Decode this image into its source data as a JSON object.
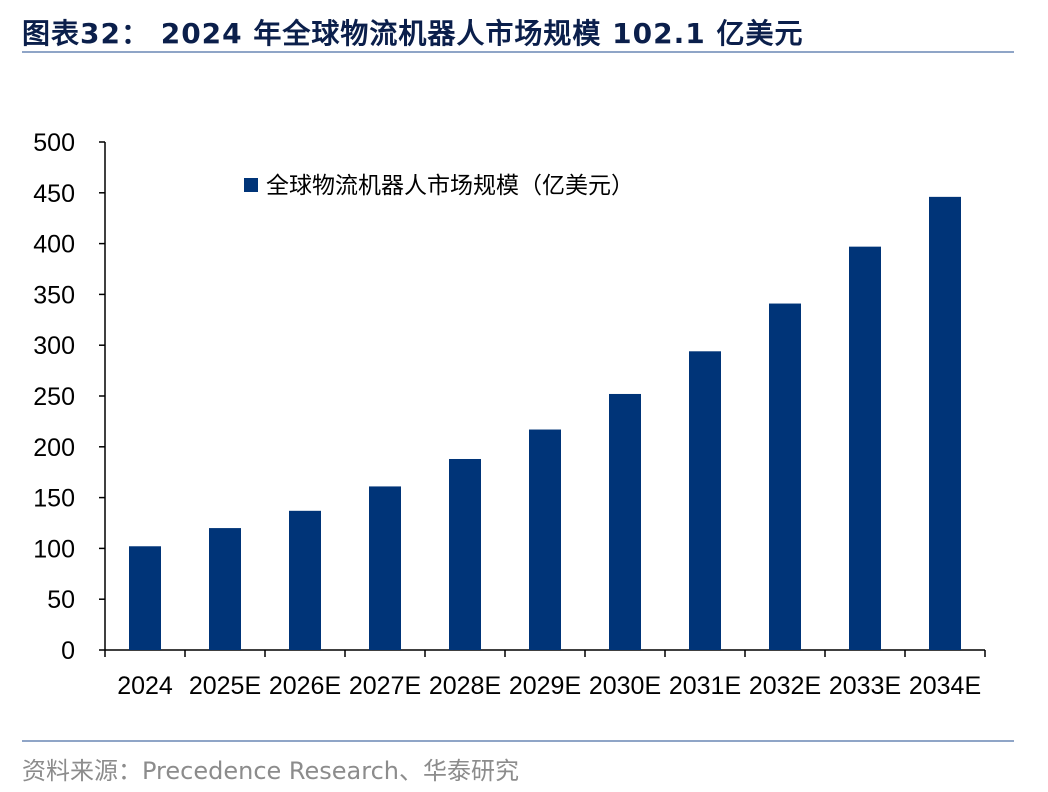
{
  "header": {
    "title": "图表32：  2024 年全球物流机器人市场规模 102.1 亿美元"
  },
  "footer": {
    "source": "资料来源：Precedence Research、华泰研究"
  },
  "chart_data": {
    "type": "bar",
    "categories": [
      "2024",
      "2025E",
      "2026E",
      "2027E",
      "2028E",
      "2029E",
      "2030E",
      "2031E",
      "2032E",
      "2033E",
      "2034E"
    ],
    "series": [
      {
        "name": "全球物流机器人市场规模（亿美元）",
        "color": "#003478",
        "values": [
          102.1,
          120,
          137,
          161,
          188,
          217,
          252,
          294,
          341,
          397,
          446
        ]
      }
    ],
    "xlabel": "",
    "ylabel": "",
    "ylim": [
      0,
      500
    ],
    "yticks": [
      0,
      50,
      100,
      150,
      200,
      250,
      300,
      350,
      400,
      450,
      500
    ],
    "grid": false,
    "legend_position": "top-left"
  }
}
